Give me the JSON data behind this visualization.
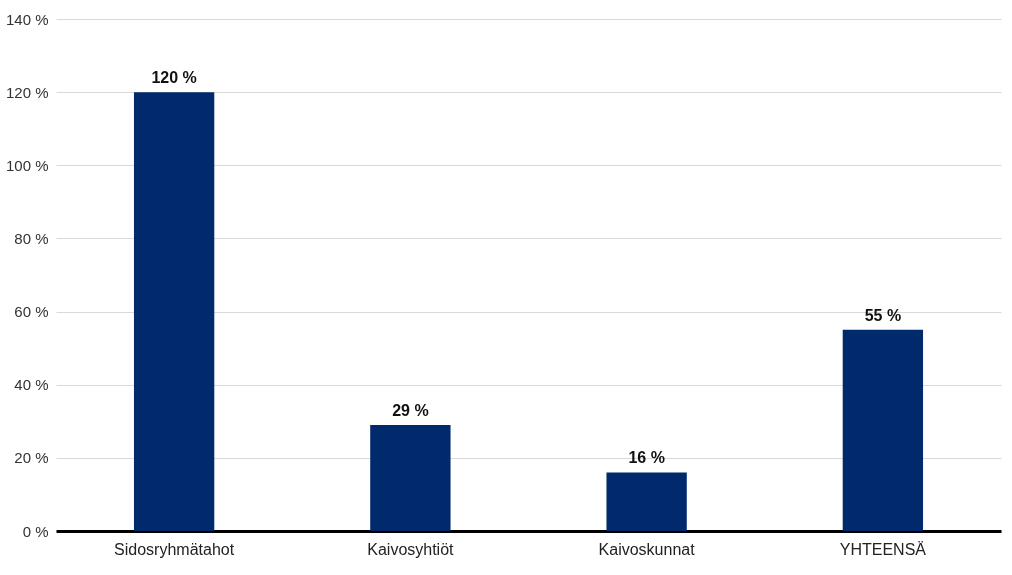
{
  "chart_data": {
    "type": "bar",
    "categories": [
      "Sidosryhmätahot",
      "Kaivosyhtiöt",
      "Kaivoskunnat",
      "YHTEENSÄ"
    ],
    "values": [
      120,
      29,
      16,
      55
    ],
    "value_labels": [
      "120 %",
      "29 %",
      "16 %",
      "55 %"
    ],
    "color": "#002a6c",
    "ylim": [
      0,
      140
    ],
    "yticks": [
      {
        "value": 0,
        "label": "0 %"
      },
      {
        "value": 20,
        "label": "20 %"
      },
      {
        "value": 40,
        "label": "40 %"
      },
      {
        "value": 60,
        "label": "60 %"
      },
      {
        "value": 80,
        "label": "80 %"
      },
      {
        "value": 100,
        "label": "100 %"
      },
      {
        "value": 120,
        "label": "120 %"
      },
      {
        "value": 140,
        "label": "140 %"
      }
    ],
    "grid": "y"
  }
}
